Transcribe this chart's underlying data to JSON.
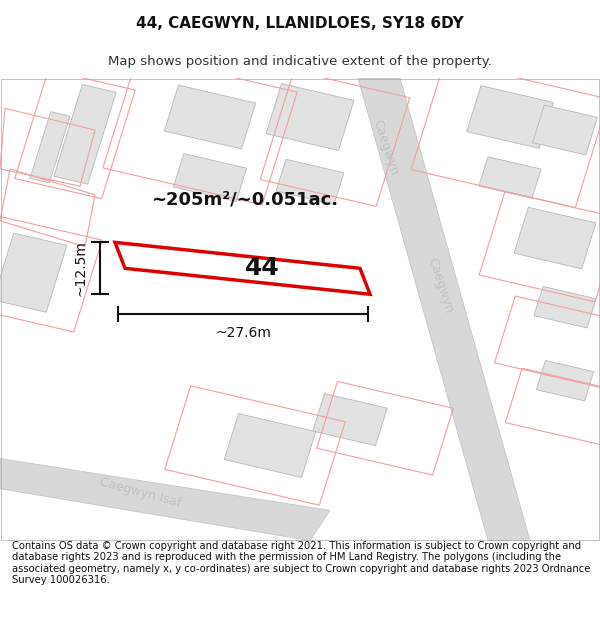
{
  "title": "44, CAEGWYN, LLANIDLOES, SY18 6DY",
  "subtitle": "Map shows position and indicative extent of the property.",
  "footer": "Contains OS data © Crown copyright and database right 2021. This information is subject to Crown copyright and database rights 2023 and is reproduced with the permission of HM Land Registry. The polygons (including the associated geometry, namely x, y co-ordinates) are subject to Crown copyright and database rights 2023 Ordnance Survey 100026316.",
  "area_label": "~205m²/~0.051ac.",
  "width_label": "~27.6m",
  "height_label": "~12.5m",
  "property_number": "44",
  "road_color": "#d8d8d8",
  "road_edge_color": "#c0c0c0",
  "building_fill": "#e2e2e2",
  "building_border": "#b8b8b8",
  "plot_outline_color": "#f0a0a0",
  "main_plot_color": "#dd0000",
  "dim_line_color": "#111111",
  "street_label_color": "#c0c0c0",
  "title_fontsize": 11,
  "subtitle_fontsize": 9.5,
  "footer_fontsize": 7.2,
  "map_bg": "#ffffff"
}
